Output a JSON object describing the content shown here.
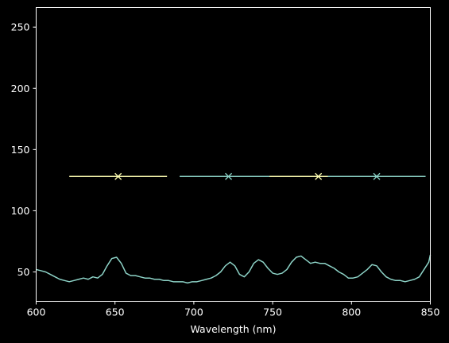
{
  "chart_data": {
    "type": "line",
    "title": "",
    "xlabel": "Wavelength (nm)",
    "ylabel": "",
    "xlim": [
      600,
      850
    ],
    "ylim": [
      26,
      266
    ],
    "xticks": [
      600,
      650,
      700,
      750,
      800,
      850
    ],
    "yticks": [
      50,
      100,
      150,
      200,
      250
    ],
    "grid": false,
    "background": "#000000",
    "colors": {
      "spectrum": "#8dd3c7",
      "alt": "#ffffb3",
      "axis": "#ffffff"
    },
    "spectrum": {
      "x": [
        600,
        603,
        606,
        609,
        612,
        615,
        618,
        621,
        624,
        627,
        630,
        633,
        636,
        639,
        642,
        645,
        648,
        651,
        654,
        657,
        660,
        663,
        666,
        669,
        672,
        675,
        678,
        681,
        684,
        687,
        690,
        693,
        696,
        699,
        702,
        705,
        708,
        711,
        714,
        717,
        720,
        723,
        726,
        729,
        732,
        735,
        738,
        741,
        744,
        747,
        750,
        753,
        756,
        759,
        762,
        765,
        768,
        771,
        774,
        777,
        780,
        783,
        786,
        789,
        792,
        795,
        798,
        801,
        804,
        807,
        810,
        813,
        816,
        819,
        822,
        825,
        828,
        831,
        834,
        837,
        840,
        843,
        846,
        849,
        850
      ],
      "y": [
        52,
        51,
        50,
        48,
        46,
        44,
        43,
        42,
        43,
        44,
        45,
        44,
        46,
        45,
        48,
        55,
        61,
        62,
        57,
        49,
        47,
        47,
        46,
        45,
        45,
        44,
        44,
        43,
        43,
        42,
        42,
        42,
        41,
        42,
        42,
        43,
        44,
        45,
        47,
        50,
        55,
        58,
        55,
        48,
        46,
        50,
        57,
        60,
        58,
        53,
        49,
        48,
        49,
        52,
        58,
        62,
        63,
        60,
        57,
        58,
        57,
        57,
        55,
        53,
        50,
        48,
        45,
        45,
        46,
        49,
        52,
        56,
        55,
        50,
        46,
        44,
        43,
        43,
        42,
        43,
        44,
        46,
        52,
        58,
        64
      ]
    },
    "markers": [
      {
        "x": 652,
        "y": 128,
        "xerr": 31,
        "color": "#ffffb3"
      },
      {
        "x": 722,
        "y": 128,
        "xerr": 31,
        "color": "#8dd3c7"
      },
      {
        "x": 779,
        "y": 128,
        "xerr": 31,
        "color": "#ffffb3"
      },
      {
        "x": 816,
        "y": 128,
        "xerr": 31,
        "color": "#8dd3c7"
      }
    ]
  }
}
